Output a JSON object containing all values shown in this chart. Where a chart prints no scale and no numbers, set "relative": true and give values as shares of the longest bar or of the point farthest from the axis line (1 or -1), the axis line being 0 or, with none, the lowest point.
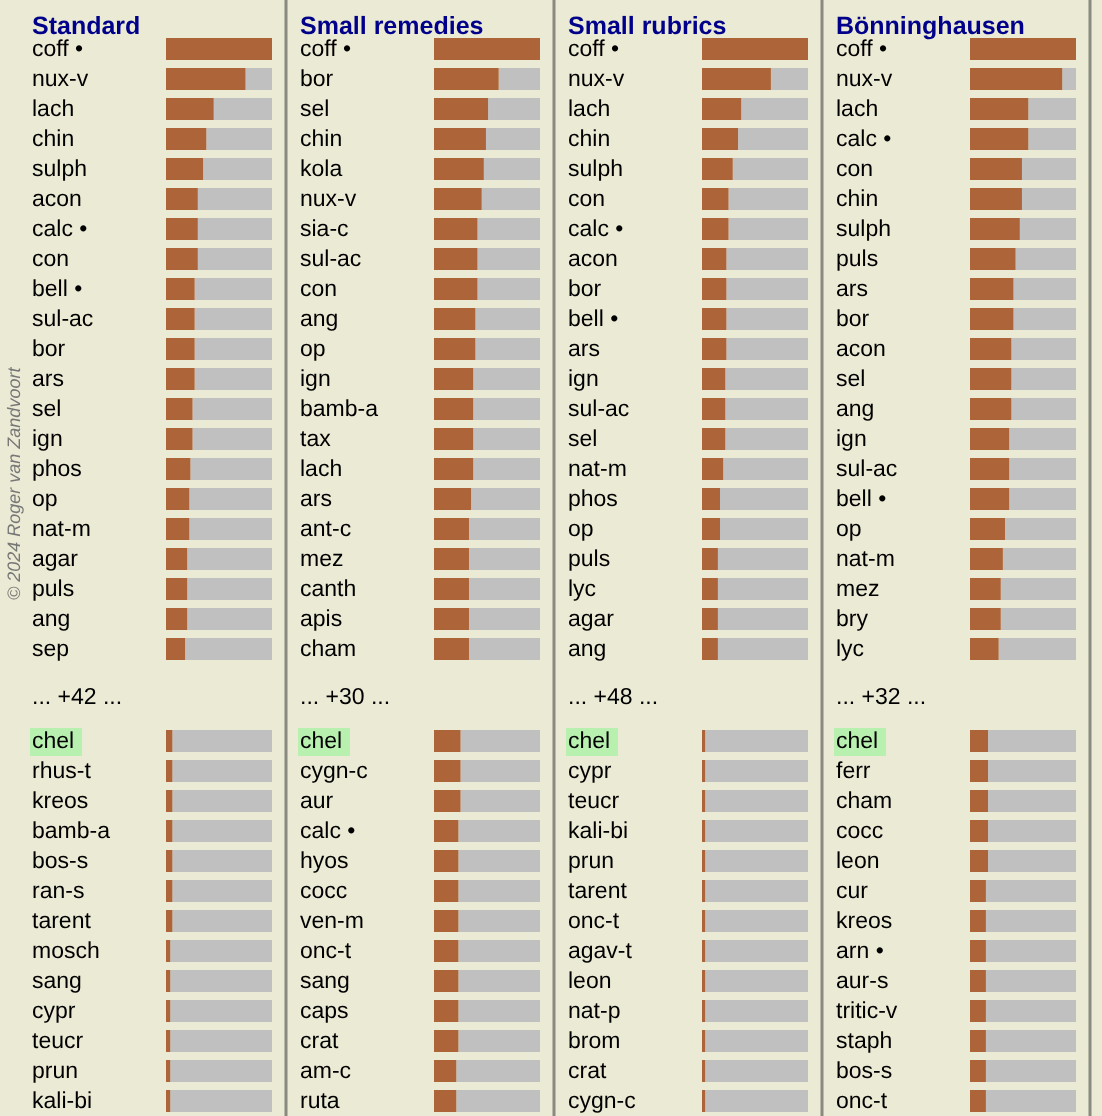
{
  "chart_data": [
    {
      "type": "bar",
      "orientation": "horizontal",
      "relative": true,
      "title": "Standard",
      "color": "#ad6438",
      "categories": [
        "coff •",
        "nux-v",
        "lach",
        "chin",
        "sulph",
        "acon",
        "calc •",
        "con",
        "bell •",
        "sul-ac",
        "bor",
        "ars",
        "sel",
        "ign",
        "phos",
        "op",
        "nat-m",
        "agar",
        "puls",
        "ang",
        "sep",
        "... +42 ...",
        "chel",
        "rhus-t",
        "kreos",
        "bamb-a",
        "bos-s",
        "ran-s",
        "tarent",
        "mosch",
        "sang",
        "cypr",
        "teucr",
        "prun",
        "kali-bi"
      ],
      "values": [
        1,
        0.75,
        0.45,
        0.38,
        0.35,
        0.3,
        0.3,
        0.3,
        0.27,
        0.27,
        0.27,
        0.27,
        0.25,
        0.25,
        0.23,
        0.22,
        0.22,
        0.2,
        0.2,
        0.2,
        0.18,
        null,
        0.06,
        0.06,
        0.06,
        0.06,
        0.06,
        0.06,
        0.06,
        0.04,
        0.04,
        0.04,
        0.04,
        0.04,
        0.04
      ],
      "annotations": [
        "© 2024 Roger van Zandvoort"
      ]
    },
    {
      "type": "bar",
      "orientation": "horizontal",
      "relative": true,
      "title": "Small remedies",
      "color": "#ad6438",
      "categories": [
        "coff •",
        "bor",
        "sel",
        "chin",
        "kola",
        "nux-v",
        "sia-c",
        "sul-ac",
        "con",
        "ang",
        "op",
        "ign",
        "bamb-a",
        "tax",
        "lach",
        "ars",
        "ant-c",
        "mez",
        "canth",
        "apis",
        "cham",
        "... +30 ...",
        "chel",
        "cygn-c",
        "aur",
        "calc •",
        "hyos",
        "cocc",
        "ven-m",
        "onc-t",
        "sang",
        "caps",
        "crat",
        "am-c",
        "ruta"
      ],
      "values": [
        1,
        0.61,
        0.51,
        0.49,
        0.47,
        0.45,
        0.41,
        0.41,
        0.41,
        0.39,
        0.39,
        0.37,
        0.37,
        0.37,
        0.37,
        0.35,
        0.33,
        0.33,
        0.33,
        0.33,
        0.33,
        null,
        0.25,
        0.25,
        0.25,
        0.23,
        0.23,
        0.23,
        0.23,
        0.23,
        0.23,
        0.23,
        0.23,
        0.21,
        0.21
      ]
    },
    {
      "type": "bar",
      "orientation": "horizontal",
      "relative": true,
      "title": "Small rubrics",
      "color": "#ad6438",
      "categories": [
        "coff •",
        "nux-v",
        "lach",
        "chin",
        "sulph",
        "con",
        "calc •",
        "acon",
        "bor",
        "bell •",
        "ars",
        "ign",
        "sul-ac",
        "sel",
        "nat-m",
        "phos",
        "op",
        "puls",
        "lyc",
        "agar",
        "ang",
        "... +48 ...",
        "chel",
        "cypr",
        "teucr",
        "kali-bi",
        "prun",
        "tarent",
        "onc-t",
        "agav-t",
        "leon",
        "nat-p",
        "brom",
        "crat",
        "cygn-c"
      ],
      "values": [
        1,
        0.65,
        0.37,
        0.34,
        0.29,
        0.25,
        0.25,
        0.23,
        0.23,
        0.23,
        0.23,
        0.22,
        0.22,
        0.22,
        0.2,
        0.17,
        0.17,
        0.15,
        0.15,
        0.15,
        0.15,
        null,
        0.03,
        0.03,
        0.03,
        0.03,
        0.03,
        0.03,
        0.03,
        0.03,
        0.03,
        0.03,
        0.03,
        0.03,
        0.03
      ]
    },
    {
      "type": "bar",
      "orientation": "horizontal",
      "relative": true,
      "title": "Bönninghausen",
      "color": "#ad6438",
      "categories": [
        "coff •",
        "nux-v",
        "lach",
        "calc •",
        "con",
        "chin",
        "sulph",
        "puls",
        "ars",
        "bor",
        "acon",
        "sel",
        "ang",
        "ign",
        "sul-ac",
        "bell •",
        "op",
        "nat-m",
        "mez",
        "bry",
        "lyc",
        "... +32 ...",
        "chel",
        "ferr",
        "cham",
        "cocc",
        "leon",
        "cur",
        "kreos",
        "arn •",
        "aur-s",
        "tritic-v",
        "staph",
        "bos-s",
        "onc-t"
      ],
      "values": [
        1,
        0.87,
        0.55,
        0.55,
        0.49,
        0.49,
        0.47,
        0.43,
        0.41,
        0.41,
        0.39,
        0.39,
        0.39,
        0.37,
        0.37,
        0.37,
        0.33,
        0.31,
        0.29,
        0.29,
        0.27,
        null,
        0.17,
        0.17,
        0.17,
        0.17,
        0.17,
        0.15,
        0.15,
        0.15,
        0.15,
        0.15,
        0.15,
        0.15,
        0.15
      ]
    }
  ]
}
